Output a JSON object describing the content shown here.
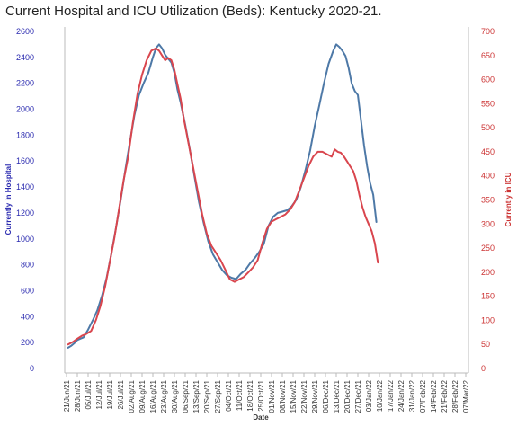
{
  "chart_data": {
    "type": "line",
    "title": "Current Hospital and ICU Utilization (Beds):  Kentucky 2020-21.",
    "xlabel": "Date",
    "ylabel_left": "Currently in Hospital",
    "ylabel_right": "Currently in ICU",
    "x_ticks": [
      "21/Jun/21",
      "28/Jun/21",
      "05/Jul/21",
      "12/Jul/21",
      "19/Jul/21",
      "26/Jul/21",
      "02/Aug/21",
      "09/Aug/21",
      "16/Aug/21",
      "23/Aug/21",
      "30/Aug/21",
      "06/Sep/21",
      "13/Sep/21",
      "20/Sep/21",
      "27/Sep/21",
      "04/Oct/21",
      "11/Oct/21",
      "18/Oct/21",
      "25/Oct/21",
      "01/Nov/21",
      "08/Nov/21",
      "15/Nov/21",
      "22/Nov/21",
      "29/Nov/21",
      "06/Dec/21",
      "13/Dec/21",
      "20/Dec/21",
      "27/Dec/21",
      "03/Jan/22",
      "10/Jan/22",
      "17/Jan/22",
      "24/Jan/22",
      "31/Jan/22",
      "07/Feb/22",
      "14/Feb/22",
      "21/Feb/22",
      "28/Feb/22",
      "07/Mar/22"
    ],
    "y_left_ticks": [
      0,
      200,
      400,
      600,
      800,
      1000,
      1200,
      1400,
      1600,
      1800,
      2000,
      2200,
      2400,
      2600
    ],
    "y_right_ticks": [
      0,
      50,
      100,
      150,
      200,
      250,
      300,
      350,
      400,
      450,
      500,
      550,
      600,
      650,
      700
    ],
    "ylim_left": [
      0,
      2600
    ],
    "ylim_right": [
      0,
      700
    ],
    "grid": false,
    "series": [
      {
        "name": "Currently in Hospital",
        "axis": "left",
        "color": "#4e79a7",
        "points": [
          [
            1,
            160
          ],
          [
            3,
            175
          ],
          [
            5,
            195
          ],
          [
            7,
            220
          ],
          [
            9,
            230
          ],
          [
            11,
            240
          ],
          [
            14,
            300
          ],
          [
            17,
            370
          ],
          [
            20,
            450
          ],
          [
            23,
            560
          ],
          [
            26,
            700
          ],
          [
            29,
            880
          ],
          [
            32,
            1080
          ],
          [
            35,
            1290
          ],
          [
            38,
            1520
          ],
          [
            41,
            1740
          ],
          [
            44,
            1950
          ],
          [
            47,
            2110
          ],
          [
            50,
            2200
          ],
          [
            53,
            2280
          ],
          [
            56,
            2400
          ],
          [
            58,
            2470
          ],
          [
            60,
            2500
          ],
          [
            62,
            2470
          ],
          [
            64,
            2420
          ],
          [
            66,
            2390
          ],
          [
            68,
            2360
          ],
          [
            70,
            2280
          ],
          [
            72,
            2150
          ],
          [
            74,
            2050
          ],
          [
            77,
            1880
          ],
          [
            80,
            1690
          ],
          [
            83,
            1480
          ],
          [
            86,
            1280
          ],
          [
            89,
            1120
          ],
          [
            92,
            980
          ],
          [
            95,
            880
          ],
          [
            98,
            820
          ],
          [
            101,
            760
          ],
          [
            104,
            720
          ],
          [
            107,
            700
          ],
          [
            110,
            690
          ],
          [
            113,
            730
          ],
          [
            116,
            760
          ],
          [
            119,
            810
          ],
          [
            122,
            850
          ],
          [
            125,
            900
          ],
          [
            128,
            960
          ],
          [
            131,
            1100
          ],
          [
            134,
            1170
          ],
          [
            137,
            1200
          ],
          [
            140,
            1210
          ],
          [
            143,
            1220
          ],
          [
            146,
            1250
          ],
          [
            149,
            1300
          ],
          [
            152,
            1400
          ],
          [
            155,
            1530
          ],
          [
            158,
            1680
          ],
          [
            161,
            1870
          ],
          [
            164,
            2030
          ],
          [
            167,
            2200
          ],
          [
            170,
            2350
          ],
          [
            173,
            2450
          ],
          [
            175,
            2500
          ],
          [
            177,
            2480
          ],
          [
            179,
            2450
          ],
          [
            181,
            2410
          ],
          [
            183,
            2320
          ],
          [
            185,
            2200
          ],
          [
            187,
            2140
          ],
          [
            189,
            2110
          ],
          [
            191,
            1920
          ],
          [
            193,
            1720
          ],
          [
            195,
            1560
          ],
          [
            197,
            1430
          ],
          [
            199,
            1340
          ],
          [
            201,
            1130
          ]
        ]
      },
      {
        "name": "Currently in ICU",
        "axis": "right",
        "color": "#d9464e",
        "points": [
          [
            1,
            50
          ],
          [
            4,
            55
          ],
          [
            7,
            62
          ],
          [
            10,
            68
          ],
          [
            13,
            72
          ],
          [
            16,
            78
          ],
          [
            19,
            100
          ],
          [
            22,
            130
          ],
          [
            25,
            170
          ],
          [
            28,
            220
          ],
          [
            31,
            270
          ],
          [
            34,
            330
          ],
          [
            37,
            390
          ],
          [
            40,
            440
          ],
          [
            43,
            510
          ],
          [
            46,
            570
          ],
          [
            49,
            610
          ],
          [
            52,
            640
          ],
          [
            55,
            660
          ],
          [
            58,
            665
          ],
          [
            60,
            660
          ],
          [
            62,
            650
          ],
          [
            64,
            640
          ],
          [
            66,
            645
          ],
          [
            68,
            640
          ],
          [
            70,
            620
          ],
          [
            72,
            590
          ],
          [
            74,
            560
          ],
          [
            76,
            520
          ],
          [
            79,
            470
          ],
          [
            82,
            420
          ],
          [
            85,
            370
          ],
          [
            88,
            320
          ],
          [
            91,
            280
          ],
          [
            94,
            255
          ],
          [
            97,
            240
          ],
          [
            100,
            225
          ],
          [
            103,
            205
          ],
          [
            106,
            185
          ],
          [
            109,
            180
          ],
          [
            112,
            185
          ],
          [
            115,
            190
          ],
          [
            118,
            200
          ],
          [
            121,
            210
          ],
          [
            124,
            225
          ],
          [
            127,
            260
          ],
          [
            130,
            290
          ],
          [
            133,
            305
          ],
          [
            136,
            310
          ],
          [
            139,
            315
          ],
          [
            142,
            320
          ],
          [
            145,
            330
          ],
          [
            148,
            345
          ],
          [
            151,
            370
          ],
          [
            154,
            395
          ],
          [
            157,
            420
          ],
          [
            160,
            440
          ],
          [
            163,
            450
          ],
          [
            166,
            450
          ],
          [
            169,
            445
          ],
          [
            172,
            440
          ],
          [
            174,
            455
          ],
          [
            176,
            450
          ],
          [
            178,
            448
          ],
          [
            180,
            440
          ],
          [
            182,
            430
          ],
          [
            184,
            420
          ],
          [
            186,
            410
          ],
          [
            188,
            390
          ],
          [
            190,
            360
          ],
          [
            192,
            335
          ],
          [
            194,
            315
          ],
          [
            196,
            300
          ],
          [
            198,
            285
          ],
          [
            200,
            260
          ],
          [
            202,
            220
          ]
        ]
      }
    ]
  }
}
